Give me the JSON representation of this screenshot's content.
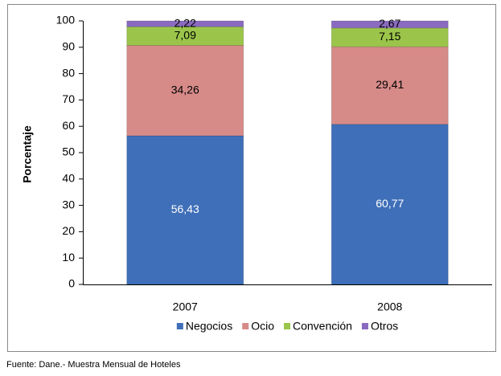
{
  "chart_data": {
    "type": "bar",
    "stacked": true,
    "categories": [
      "2007",
      "2008"
    ],
    "series": [
      {
        "name": "Negocios",
        "color": "#3f6fb8",
        "values": [
          56.43,
          60.77
        ],
        "value_labels": [
          "56,43",
          "60,77"
        ]
      },
      {
        "name": "Ocio",
        "color": "#d68b89",
        "values": [
          34.26,
          29.41
        ],
        "value_labels": [
          "34,26",
          "29,41"
        ]
      },
      {
        "name": "Convención",
        "color": "#9bc54a",
        "values": [
          7.09,
          7.15
        ],
        "value_labels": [
          "7,09",
          "7,15"
        ]
      },
      {
        "name": "Otros",
        "color": "#8a6bbf",
        "values": [
          2.22,
          2.67
        ],
        "value_labels": [
          "2,22",
          "2,67"
        ]
      }
    ],
    "ylabel": "Porcentaje",
    "ylim": [
      0,
      100
    ],
    "yticks": [
      0,
      10,
      20,
      30,
      40,
      50,
      60,
      70,
      80,
      90,
      100
    ],
    "grid": false,
    "legend": "bottom"
  },
  "source": "Fuente: Dane.- Muestra Mensual de Hoteles"
}
